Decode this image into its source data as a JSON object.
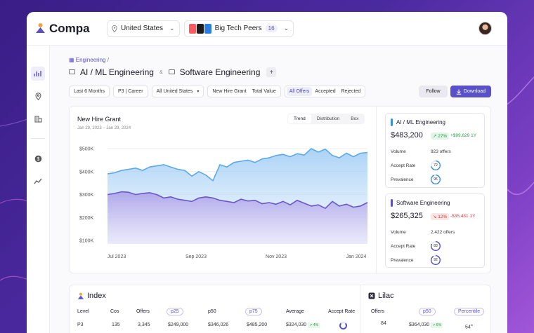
{
  "app": {
    "brand": "Compa"
  },
  "topbar": {
    "location": "United States",
    "peer_group": "Big Tech Peers",
    "peer_count": "16"
  },
  "breadcrumb": {
    "root": "Engineering",
    "separator": "/"
  },
  "titles": {
    "first": "AI / ML Engineering",
    "amp": "&",
    "second": "Software Engineering",
    "add": "+"
  },
  "filters": {
    "period": "Last 6 Months",
    "level": "P3 | Career",
    "region": "All United States",
    "comp_type": [
      "New Hire Grant",
      "Total Value"
    ],
    "status": [
      "All Offers",
      "Accepted",
      "Rejected"
    ],
    "active_status": "All Offers"
  },
  "actions": {
    "follow": "Follow",
    "download": "Download"
  },
  "chart_header": {
    "title": "New Hire Grant",
    "subtitle": "Jan 29, 2023 – Jan 29, 2024",
    "tabs": [
      "Trend",
      "Distribution",
      "Box"
    ],
    "active_tab": "Trend"
  },
  "chart_data": {
    "type": "area",
    "title": "New Hire Grant",
    "y_ticks": [
      "$500K",
      "$400K",
      "$300K",
      "$200K",
      "$100K"
    ],
    "x_ticks": [
      "Jul 2023",
      "Sep 2023",
      "Nov 2023",
      "Jan 2024"
    ],
    "ylim": [
      100000,
      500000
    ],
    "x": [
      0,
      1,
      2,
      3,
      4,
      5,
      6,
      7,
      8,
      9,
      10,
      11,
      12,
      13,
      14,
      15,
      16,
      17,
      18,
      19,
      20,
      21,
      22,
      23,
      24,
      25,
      26,
      27,
      28,
      29,
      30,
      31,
      32,
      33,
      34,
      35,
      36,
      37
    ],
    "series": [
      {
        "name": "AI / ML Engineering",
        "color": "#5aa9ea",
        "values": [
          390000,
          395000,
          405000,
          410000,
          415000,
          405000,
          420000,
          425000,
          430000,
          420000,
          410000,
          405000,
          380000,
          400000,
          385000,
          360000,
          430000,
          420000,
          440000,
          445000,
          450000,
          440000,
          455000,
          460000,
          470000,
          475000,
          465000,
          478000,
          472000,
          500000,
          485000,
          498000,
          470000,
          460000,
          480000,
          465000,
          480000,
          483200
        ]
      },
      {
        "name": "Software Engineering",
        "color": "#6a58c9",
        "values": [
          300000,
          305000,
          312000,
          310000,
          300000,
          305000,
          308000,
          300000,
          285000,
          290000,
          280000,
          275000,
          270000,
          285000,
          290000,
          285000,
          275000,
          270000,
          265000,
          280000,
          272000,
          275000,
          260000,
          265000,
          258000,
          270000,
          255000,
          275000,
          262000,
          250000,
          255000,
          240000,
          270000,
          250000,
          258000,
          245000,
          250000,
          265325
        ]
      }
    ]
  },
  "stats": [
    {
      "title": "AI / ML Engineering",
      "color": "#3d8ee0",
      "value": "$483,200",
      "change": "↗ 27%",
      "abs_change": "+$99,629 1Y",
      "positive": true,
      "volume_label": "Volume",
      "volume": "923 offers",
      "accept_label": "Accept Rate",
      "accept": "72",
      "accept_pct": 72,
      "prevalence_label": "Prevalence",
      "prevalence": "95",
      "prevalence_pct": 95
    },
    {
      "title": "Software Engineering",
      "color": "#5a51c9",
      "value": "$265,325",
      "change": "↘ 12%",
      "abs_change": "-$35,431 1Y",
      "positive": false,
      "volume_label": "Volume",
      "volume": "2,422 offers",
      "accept_label": "Accept Rate",
      "accept": "83",
      "accept_pct": 83,
      "prevalence_label": "Prevalence",
      "prevalence": "92",
      "prevalence_pct": 92
    }
  ],
  "index_table": {
    "title": "Index",
    "headers": [
      "Level",
      "Cos",
      "Offers",
      "p25",
      "p50",
      "p75",
      "Average",
      "Accept Rate"
    ],
    "row": [
      "P3",
      "135",
      "3,345",
      "$249,000",
      "$346,026",
      "$485,200",
      "$324,030",
      "↗ 4%"
    ]
  },
  "lilac_table": {
    "title": "Lilac",
    "headers": [
      "Offers",
      "p50",
      "Percentile"
    ],
    "row": [
      "84",
      "$364,030",
      "↗ 6%",
      "54",
      "th"
    ]
  }
}
